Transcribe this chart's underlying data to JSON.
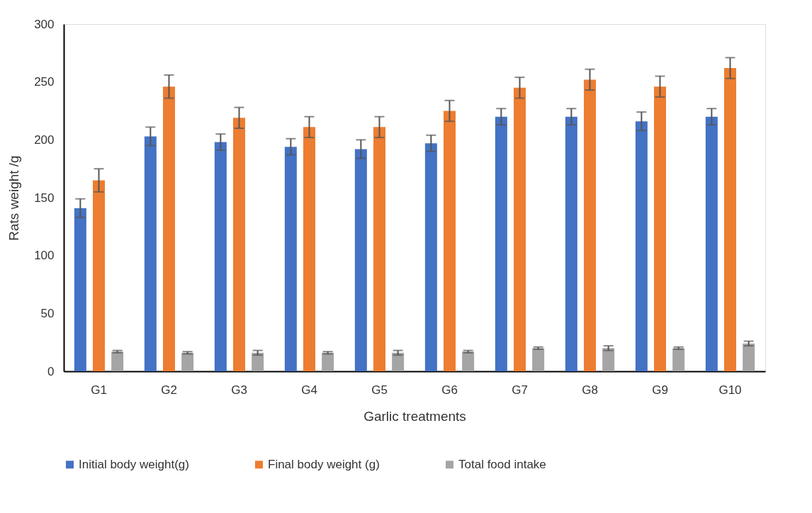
{
  "chart_data": {
    "type": "bar",
    "xlabel": "Garlic treatments",
    "ylabel": "Rats weight  /g",
    "categories": [
      "G1",
      "G2",
      "G3",
      "G4",
      "G5",
      "G6",
      "G7",
      "G8",
      "G9",
      "G10"
    ],
    "series": [
      {
        "name": "Initial body weight(g)",
        "color": "#4472c4",
        "values": [
          141,
          203,
          198,
          194,
          192,
          197,
          220,
          220,
          216,
          220
        ],
        "errors": [
          8,
          8,
          7,
          7,
          8,
          7,
          7,
          7,
          8,
          7
        ]
      },
      {
        "name": "Final body weight (g)",
        "color": "#ed7d31",
        "values": [
          165,
          246,
          219,
          211,
          211,
          225,
          245,
          252,
          246,
          262
        ],
        "errors": [
          10,
          10,
          9,
          9,
          9,
          9,
          9,
          9,
          9,
          9
        ]
      },
      {
        "name": "Total food intake",
        "color": "#a5a5a5",
        "values": [
          17,
          16,
          16,
          16,
          16,
          17,
          20,
          20,
          20,
          24
        ],
        "errors": [
          1,
          1,
          2,
          1,
          2,
          1,
          1,
          2,
          1,
          2
        ]
      }
    ],
    "ylim": [
      0,
      300
    ],
    "yticks": [
      0,
      50,
      100,
      150,
      200,
      250,
      300
    ],
    "grid": false,
    "legend": "bottom"
  }
}
